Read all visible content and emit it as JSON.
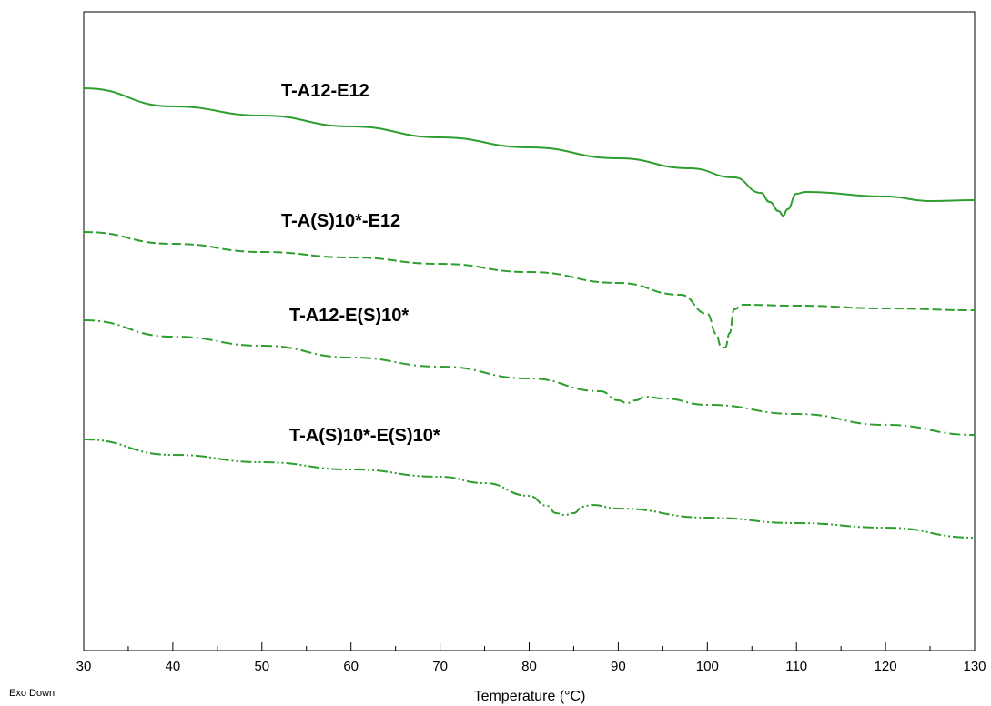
{
  "chart_data": {
    "type": "line",
    "xlabel": "Temperature (°C)",
    "ylabel": "",
    "xlim": [
      30,
      130
    ],
    "xticks": [
      30,
      40,
      50,
      60,
      70,
      80,
      90,
      100,
      110,
      120,
      130
    ],
    "note": "Exo Down",
    "grid": false,
    "line_color": "#2e9e2e",
    "series": [
      {
        "name": "T-A12-E12",
        "style": "solid",
        "x": [
          30,
          40,
          50,
          60,
          70,
          80,
          90,
          98,
          103,
          106,
          107,
          108,
          108.5,
          109,
          110,
          111,
          120,
          125,
          130
        ],
        "y": [
          97,
          117,
          127,
          139,
          151,
          162,
          174,
          185,
          195,
          212,
          222,
          232,
          237,
          230,
          213,
          211,
          216,
          221,
          220
        ]
      },
      {
        "name": "T-A(S)10*-E12",
        "style": "dashed",
        "x": [
          30,
          40,
          50,
          60,
          70,
          80,
          90,
          97,
          100,
          101,
          101.5,
          102,
          102.5,
          103,
          104,
          110,
          120,
          130
        ],
        "y": [
          255,
          268,
          277,
          283,
          290,
          299,
          311,
          324,
          345,
          367,
          380,
          382,
          366,
          340,
          335,
          336,
          339,
          341
        ]
      },
      {
        "name": "T-A12-E(S)10*",
        "style": "dashdot",
        "x": [
          30,
          40,
          50,
          60,
          70,
          80,
          88,
          90,
          91,
          92,
          93,
          95,
          100,
          110,
          120,
          130
        ],
        "y": [
          352,
          370,
          380,
          393,
          403,
          416,
          430,
          440,
          443,
          440,
          436,
          438,
          445,
          455,
          467,
          478
        ]
      },
      {
        "name": "T-A(S)10*-E(S)10*",
        "style": "dashdotdot",
        "x": [
          30,
          40,
          50,
          60,
          70,
          75,
          80,
          82,
          83,
          84,
          85,
          86,
          87,
          90,
          100,
          110,
          120,
          130
        ],
        "y": [
          483,
          500,
          508,
          516,
          524,
          531,
          545,
          556,
          564,
          566,
          564,
          557,
          555,
          559,
          569,
          575,
          580,
          591
        ]
      }
    ],
    "labels": [
      {
        "text": "T-A12-E12"
      },
      {
        "text": "T-A(S)10*-E12"
      },
      {
        "text": "T-A12-E(S)10*"
      },
      {
        "text": "T-A(S)10*-E(S)10*"
      }
    ]
  }
}
